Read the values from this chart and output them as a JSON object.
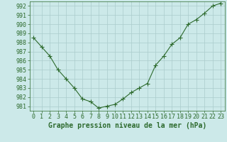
{
  "x": [
    0,
    1,
    2,
    3,
    4,
    5,
    6,
    7,
    8,
    9,
    10,
    11,
    12,
    13,
    14,
    15,
    16,
    17,
    18,
    19,
    20,
    21,
    22,
    23
  ],
  "y": [
    988.5,
    987.5,
    986.5,
    985.0,
    984.0,
    983.0,
    981.8,
    981.5,
    980.8,
    981.0,
    981.2,
    981.8,
    982.5,
    983.0,
    983.5,
    985.5,
    986.5,
    987.8,
    988.5,
    990.0,
    990.5,
    991.2,
    992.0,
    992.3
  ],
  "line_color": "#2d6a2d",
  "marker": "+",
  "marker_size": 4,
  "bg_color": "#cce9e9",
  "grid_color": "#aacccc",
  "ylabel_ticks": [
    981,
    982,
    983,
    984,
    985,
    986,
    987,
    988,
    989,
    990,
    991,
    992
  ],
  "xlim": [
    -0.5,
    23.5
  ],
  "ylim": [
    980.5,
    992.5
  ],
  "xlabel": "Graphe pression niveau de la mer (hPa)",
  "xlabel_fontsize": 7,
  "tick_fontsize": 6,
  "title": "",
  "figwidth": 3.2,
  "figheight": 2.0,
  "dpi": 100
}
